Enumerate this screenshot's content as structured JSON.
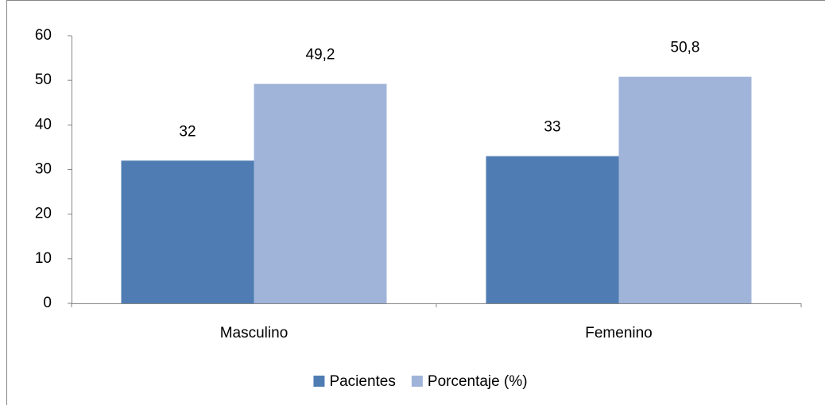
{
  "chart_data": {
    "type": "bar",
    "categories": [
      "Masculino",
      "Femenino"
    ],
    "series": [
      {
        "name": "Pacientes",
        "color": "#4f7db3",
        "values": [
          32,
          33
        ]
      },
      {
        "name": "Porcentaje (%)",
        "color": "#a0b4da",
        "values": [
          49.2,
          50.8
        ],
        "value_labels": [
          "49,2",
          "50,8"
        ]
      }
    ],
    "ylim": [
      0,
      60
    ],
    "yticks": [
      0,
      10,
      20,
      30,
      40,
      50,
      60
    ],
    "grid": false,
    "legend": "bottom"
  }
}
